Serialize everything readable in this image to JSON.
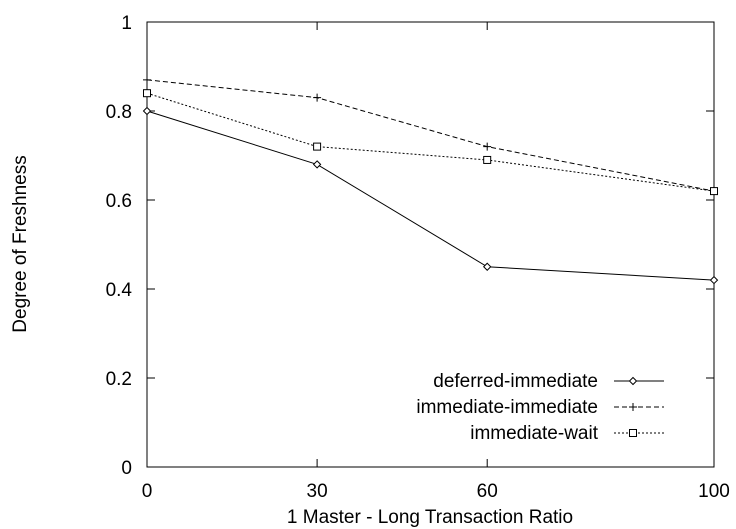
{
  "chart_data": {
    "type": "line",
    "xlabel": "1 Master - Long Transaction Ratio",
    "ylabel": "Degree of Freshness",
    "x": [
      0,
      30,
      60,
      100
    ],
    "xticks": [
      "0",
      "30",
      "60",
      "100"
    ],
    "yticks": [
      "0",
      "0.2",
      "0.4",
      "0.6",
      "0.8",
      "1"
    ],
    "xlim": [
      0,
      100
    ],
    "ylim": [
      0,
      1
    ],
    "grid": false,
    "legend_position": "bottom-right",
    "series": [
      {
        "name": "deferred-immediate",
        "values": [
          0.8,
          0.68,
          0.45,
          0.42
        ],
        "marker": "diamond",
        "line_style": "solid"
      },
      {
        "name": "immediate-immediate",
        "values": [
          0.87,
          0.83,
          0.72,
          0.62
        ],
        "marker": "plus",
        "line_style": "dashed"
      },
      {
        "name": "immediate-wait",
        "values": [
          0.84,
          0.72,
          0.69,
          0.62
        ],
        "marker": "square",
        "line_style": "dotted"
      }
    ]
  }
}
